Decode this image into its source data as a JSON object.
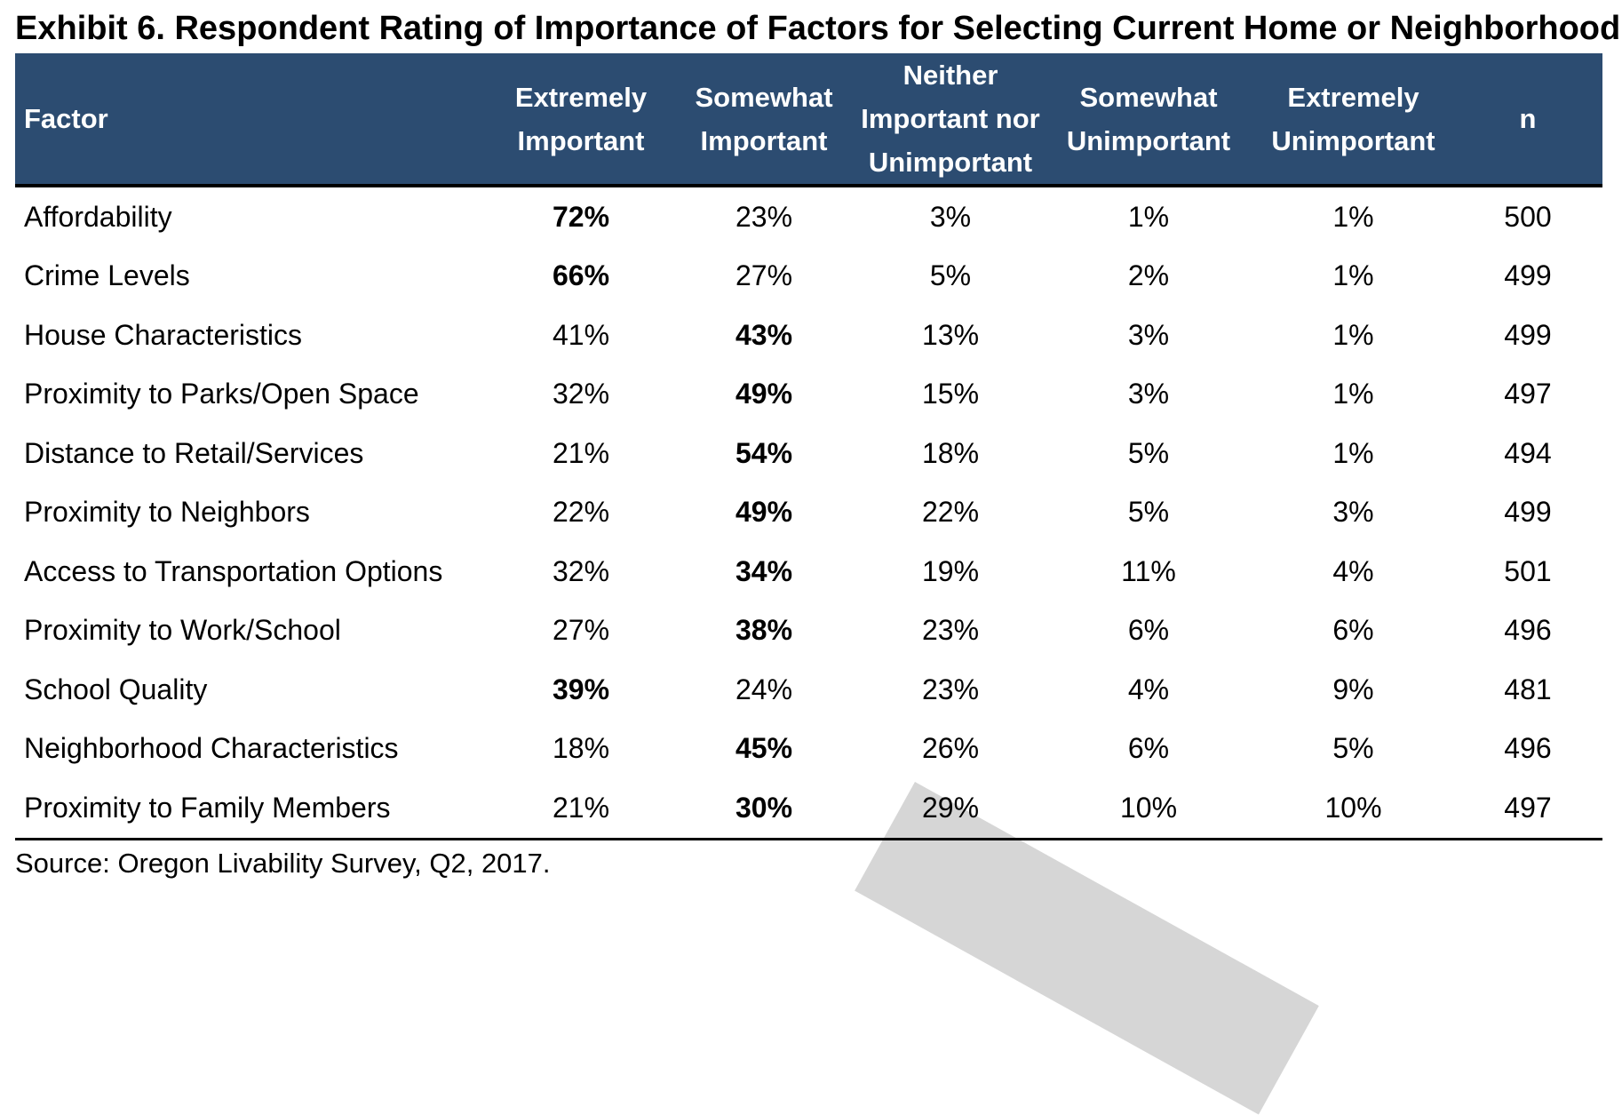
{
  "title": "Exhibit 6. Respondent Rating of Importance of Factors for Selecting Current Home or Neighborhood",
  "table": {
    "headers": [
      "Factor",
      "Extremely Important",
      "Somewhat Important",
      "Neither Important nor Unimportant",
      "Somewhat Unimportant",
      "Extremely Unimportant",
      "n"
    ],
    "rows": [
      {
        "cells": [
          "Affordability",
          "72%",
          "23%",
          "3%",
          "1%",
          "1%",
          "500"
        ],
        "bold_col": 1
      },
      {
        "cells": [
          "Crime Levels",
          "66%",
          "27%",
          "5%",
          "2%",
          "1%",
          "499"
        ],
        "bold_col": 1
      },
      {
        "cells": [
          "House Characteristics",
          "41%",
          "43%",
          "13%",
          "3%",
          "1%",
          "499"
        ],
        "bold_col": 2
      },
      {
        "cells": [
          "Proximity to Parks/Open Space",
          "32%",
          "49%",
          "15%",
          "3%",
          "1%",
          "497"
        ],
        "bold_col": 2
      },
      {
        "cells": [
          "Distance to Retail/Services",
          "21%",
          "54%",
          "18%",
          "5%",
          "1%",
          "494"
        ],
        "bold_col": 2
      },
      {
        "cells": [
          "Proximity to Neighbors",
          "22%",
          "49%",
          "22%",
          "5%",
          "3%",
          "499"
        ],
        "bold_col": 2
      },
      {
        "cells": [
          "Access to Transportation Options",
          "32%",
          "34%",
          "19%",
          "11%",
          "4%",
          "501"
        ],
        "bold_col": 2
      },
      {
        "cells": [
          "Proximity to Work/School",
          "27%",
          "38%",
          "23%",
          "6%",
          "6%",
          "496"
        ],
        "bold_col": 2
      },
      {
        "cells": [
          "School Quality",
          "39%",
          "24%",
          "23%",
          "4%",
          "9%",
          "481"
        ],
        "bold_col": 1
      },
      {
        "cells": [
          "Neighborhood Characteristics",
          "18%",
          "45%",
          "26%",
          "6%",
          "5%",
          "496"
        ],
        "bold_col": 2
      },
      {
        "cells": [
          "Proximity to Family Members",
          "21%",
          "30%",
          "29%",
          "10%",
          "10%",
          "497"
        ],
        "bold_col": 2
      }
    ]
  },
  "source": "Source: Oregon Livability Survey, Q2, 2017.",
  "colors": {
    "header_bg": "#2c4c71",
    "header_text": "#ffffff",
    "watermark": "#d6d6d6"
  }
}
